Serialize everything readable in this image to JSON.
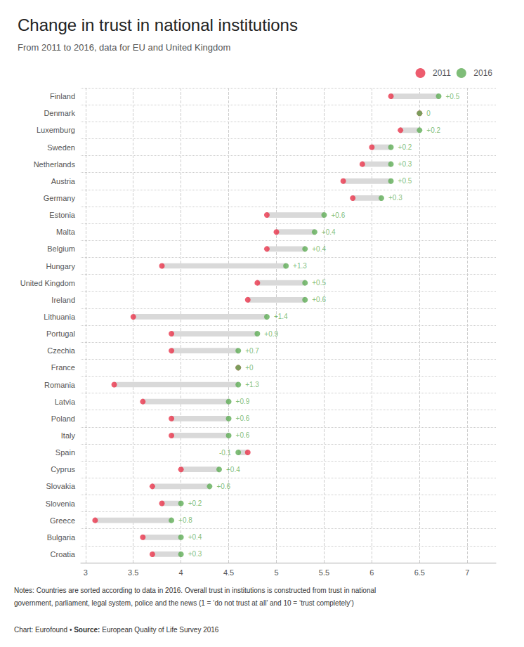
{
  "chart_data": {
    "type": "dumbbell",
    "orientation": "horizontal",
    "title": "Change in trust in national institutions",
    "subtitle": "From 2011 to 2016, data for EU and United Kingdom",
    "categories": [
      "Finland",
      "Denmark",
      "Luxemburg",
      "Sweden",
      "Netherlands",
      "Austria",
      "Germany",
      "Estonia",
      "Malta",
      "Belgium",
      "Hungary",
      "United Kingdom",
      "Ireland",
      "Lithuania",
      "Portugal",
      "Czechia",
      "France",
      "Romania",
      "Latvia",
      "Poland",
      "Italy",
      "Spain",
      "Cyprus",
      "Slovakia",
      "Slovenia",
      "Greece",
      "Bulgaria",
      "Croatia"
    ],
    "series": [
      {
        "name": "2011",
        "color": "#e8334a",
        "values": [
          6.2,
          6.5,
          6.3,
          6.0,
          5.9,
          5.7,
          5.8,
          4.9,
          5.0,
          4.9,
          3.8,
          4.8,
          4.7,
          3.5,
          3.9,
          3.9,
          4.6,
          3.3,
          3.6,
          3.9,
          3.9,
          4.7,
          4.0,
          3.7,
          3.8,
          3.1,
          3.6,
          3.7
        ]
      },
      {
        "name": "2016",
        "color": "#5fad56",
        "values": [
          6.7,
          6.5,
          6.5,
          6.2,
          6.2,
          6.2,
          6.1,
          5.5,
          5.4,
          5.3,
          5.1,
          5.3,
          5.3,
          4.9,
          4.8,
          4.6,
          4.6,
          4.6,
          4.5,
          4.5,
          4.5,
          4.6,
          4.4,
          4.3,
          4.0,
          3.9,
          4.0,
          4.0
        ],
        "changes": [
          "+0.5",
          "0",
          "+0.2",
          "+0.2",
          "+0.3",
          "+0.5",
          "+0.3",
          "+0.6",
          "+0.4",
          "+0.4",
          "+1.3",
          "+0.5",
          "+0.6",
          "+1.4",
          "+0.9",
          "+0.7",
          "+0",
          "+1.3",
          "+0.9",
          "+0.6",
          "+0.6",
          "-0.1",
          "+0.4",
          "+0.6",
          "+0.2",
          "+0.8",
          "+0.4",
          "+0.3"
        ]
      }
    ],
    "xlim": [
      2.95,
      7.3
    ],
    "xticks": [
      3,
      3.5,
      4,
      4.5,
      5,
      5.5,
      6,
      6.5,
      7
    ],
    "grid": true,
    "legend": "upper right",
    "notes": [
      "Notes: Countries are sorted according to data in 2016. Overall trust in institutions is constructed from trust in national",
      "government, parliament, legal system, police and the news (1 = ‘do not trust at all’ and 10 = ‘trust completely’)"
    ],
    "credit": [
      "Chart: Eurofound • ",
      "Source:",
      " European Quality of Life Survey 2016"
    ]
  }
}
